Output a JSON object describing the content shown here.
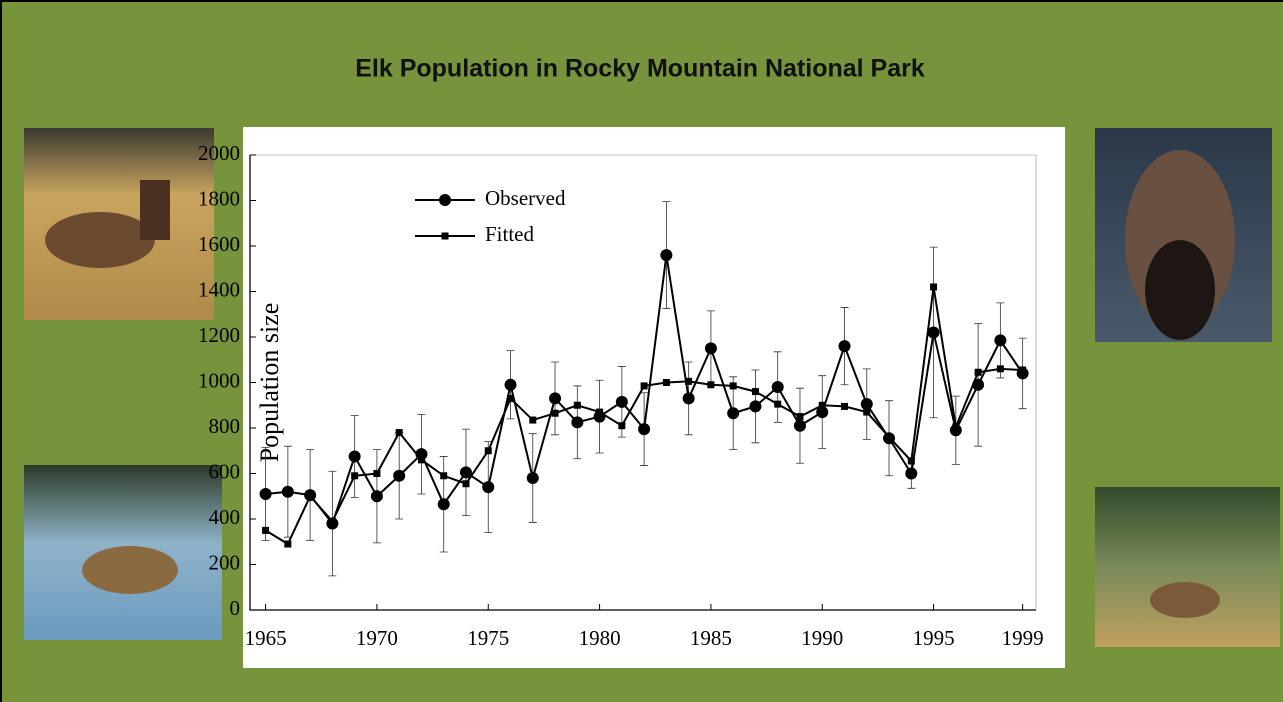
{
  "chart_data": {
    "type": "line",
    "title": "Elk Population in Rocky Mountain National Park",
    "y_label": "Population size",
    "x": [
      1965,
      1966,
      1967,
      1968,
      1969,
      1970,
      1971,
      1972,
      1973,
      1974,
      1975,
      1976,
      1977,
      1978,
      1979,
      1980,
      1981,
      1982,
      1983,
      1984,
      1985,
      1986,
      1987,
      1988,
      1989,
      1990,
      1991,
      1992,
      1993,
      1994,
      1995,
      1996,
      1997,
      1998,
      1999
    ],
    "series": [
      {
        "name": "Observed",
        "color": "#000000",
        "marker": "circle",
        "values": [
          510,
          520,
          505,
          380,
          675,
          500,
          590,
          685,
          465,
          605,
          540,
          990,
          580,
          930,
          825,
          850,
          915,
          795,
          1560,
          930,
          1150,
          865,
          895,
          980,
          810,
          870,
          1160,
          905,
          755,
          600,
          1220,
          790,
          990,
          1185,
          1040
        ],
        "errors": [
          205,
          200,
          200,
          230,
          180,
          205,
          190,
          175,
          210,
          190,
          200,
          150,
          195,
          160,
          160,
          160,
          155,
          160,
          235,
          160,
          165,
          160,
          160,
          155,
          165,
          160,
          170,
          155,
          165,
          65,
          375,
          150,
          270,
          165,
          155
        ]
      },
      {
        "name": "Fitted",
        "color": "#000000",
        "marker": "square",
        "values": [
          350,
          290,
          500,
          390,
          590,
          600,
          780,
          660,
          590,
          555,
          700,
          930,
          835,
          865,
          900,
          870,
          810,
          985,
          1000,
          1005,
          990,
          985,
          960,
          905,
          850,
          900,
          895,
          870,
          760,
          655,
          1420,
          805,
          1045,
          1060,
          1055
        ]
      }
    ],
    "xlim": [
      1964.3,
      1999.6
    ],
    "xticks": [
      1965,
      1970,
      1975,
      1980,
      1985,
      1990,
      1995,
      1999
    ],
    "ylim": [
      0,
      2000
    ],
    "yticks": [
      0,
      200,
      400,
      600,
      800,
      1000,
      1200,
      1400,
      1600,
      1800,
      2000
    ],
    "legend": "upper left"
  }
}
